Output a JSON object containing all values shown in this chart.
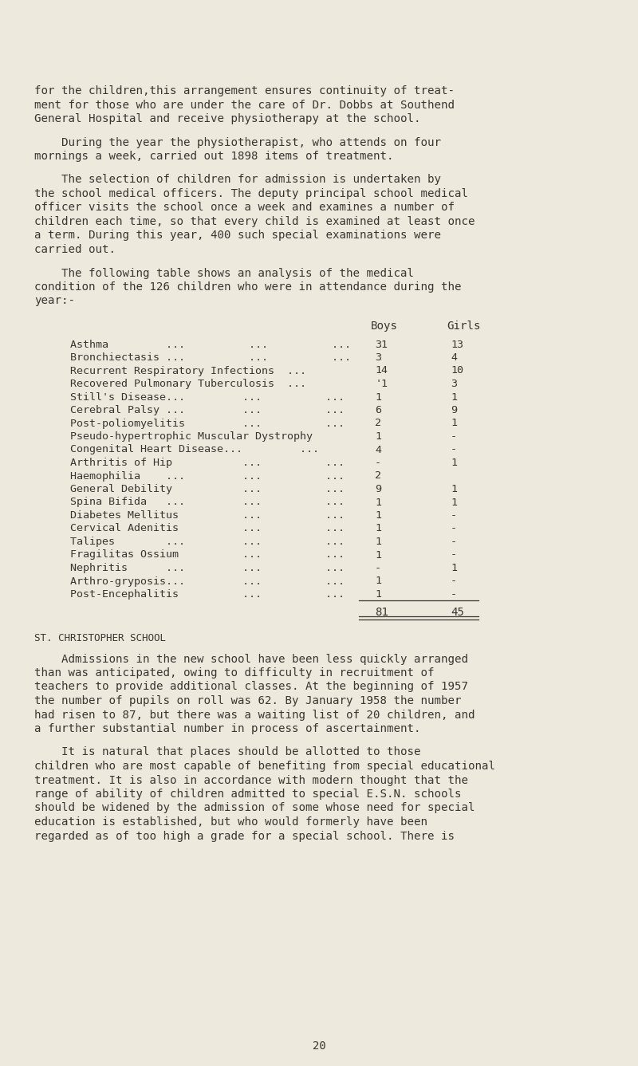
{
  "bg_color": "#ede9dc",
  "text_color": "#3a3530",
  "font_size_body": 10.2,
  "font_size_table": 9.6,
  "font_size_section": 9.0,
  "font_size_page": 10.0,
  "page_number": "20",
  "para1_lines": [
    "for the children,this arrangement ensures continuity of treat-",
    "ment for those who are under the care of Dr. Dobbs at Southend",
    "General Hospital and receive physiotherapy at the school."
  ],
  "para2_lines": [
    "    During the year the physiotherapist, who attends on four",
    "mornings a week, carried out 1898 items of treatment."
  ],
  "para3_lines": [
    "    The selection of children for admission is undertaken by",
    "the school medical officers. The deputy principal school medical",
    "officer visits the school once a week and examines a number of",
    "children each time, so that every child is examined at least once",
    "a term. During this year, 400 such special examinations were",
    "carried out."
  ],
  "para4_lines": [
    "    The following table shows an analysis of the medical",
    "condition of the 126 children who were in attendance during the",
    "year:-"
  ],
  "table_rows": [
    [
      "Asthma         ...          ...          ...",
      "31",
      "13"
    ],
    [
      "Bronchiectasis ...          ...          ...",
      "3",
      "4"
    ],
    [
      "Recurrent Respiratory Infections  ...",
      "14",
      "10"
    ],
    [
      "Recovered Pulmonary Tuberculosis  ...",
      "'1",
      "3"
    ],
    [
      "Still's Disease...         ...          ...",
      "1",
      "1"
    ],
    [
      "Cerebral Palsy ...         ...          ...",
      "6",
      "9"
    ],
    [
      "Post-poliomyelitis         ...          ...",
      "2",
      "1"
    ],
    [
      "Pseudo-hypertrophic Muscular Dystrophy",
      "1",
      "-"
    ],
    [
      "Congenital Heart Disease...         ...",
      "4",
      "-"
    ],
    [
      "Arthritis of Hip           ...          ...",
      "-",
      "1"
    ],
    [
      "Haemophilia    ...         ...          ...",
      "2",
      ""
    ],
    [
      "General Debility           ...          ...",
      "9",
      "1"
    ],
    [
      "Spina Bifida   ...         ...          ...",
      "1",
      "1"
    ],
    [
      "Diabetes Mellitus          ...          ...",
      "1",
      "-"
    ],
    [
      "Cervical Adenitis          ...          ...",
      "1",
      "-"
    ],
    [
      "Talipes        ...         ...          ...",
      "1",
      "-"
    ],
    [
      "Fragilitas Ossium          ...          ...",
      "1",
      "-"
    ],
    [
      "Nephritis      ...         ...          ...",
      "-",
      "1"
    ],
    [
      "Arthro-gryposis...         ...          ...",
      "1",
      "-"
    ],
    [
      "Post-Encephalitis          ...          ...",
      "1",
      "-"
    ]
  ],
  "table_totals": [
    "81",
    "45"
  ],
  "section_header": "ST. CHRISTOPHER SCHOOL",
  "bp1_lines": [
    "    Admissions in the new school have been less quickly arranged",
    "than was anticipated, owing to difficulty in recruitment of",
    "teachers to provide additional classes. At the beginning of 1957",
    "the number of pupils on roll was 62. By January 1958 the number",
    "had risen to 87, but there was a waiting list of 20 children, and",
    "a further substantial number in process of ascertainment."
  ],
  "bp2_lines": [
    "    It is natural that places should be allotted to those",
    "children who are most capable of benefiting from special educational",
    "treatment. It is also in accordance with modern thought that the",
    "range of ability of children admitted to special E.S.N. schools",
    "should be widened by the admission of some whose need for special",
    "education is established, but who would formerly have been",
    "regarded as of too high a grade for a special school. There is"
  ]
}
